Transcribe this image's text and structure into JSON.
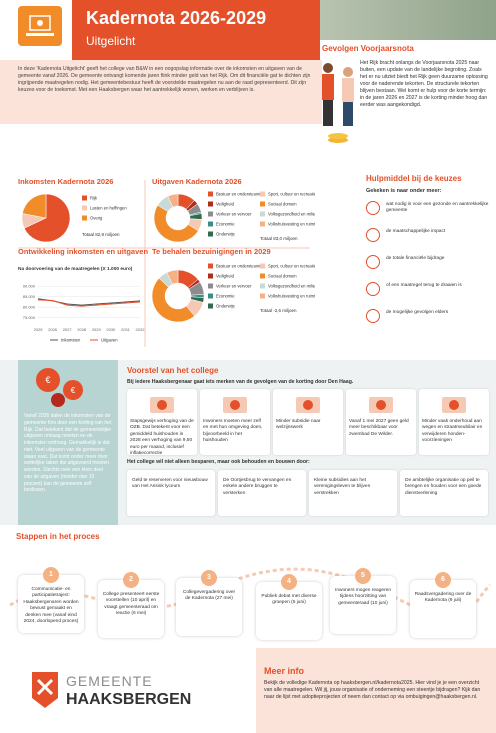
{
  "header": {
    "title": "Kadernota 2026-2029",
    "subtitle": "Uitgelicht"
  },
  "intro": "In deze 'Kadernota Uitgelicht' geeft het college van B&W in een oogopslag informatie over de inkomsten en uitgaven van de gemeente vanaf 2026. De gemeente ontvangt komende jaren fiink minder geld van het Rijk. Om dit financiële gat te dichten zijn ingrijpende maatregelen nodig. Het gemeentebestuur heeft de voorstelde maatregelen nu aan de raad gepresenteerd. Dit zijn keuzes voor de toekomst. Met een Haaksbergen waar het aantrekkelijk wonen, werken en verblijven is.",
  "gevolgen": {
    "title": "Gevolgen Voorjaarsnota",
    "text": "Het Rijk bracht onlangs de Voorjaarsnota 2025 naar buiten, een update van de landelijke begroting. Zoals het er nu uitziet biedt het Rijk geen duurzame oplossing voor de naderende tekorten. De structurele tekorten blijven bestaan. Wel komt er hulp voor de korte termijn: in de jaren 2026 en 2027 is de korting minder hoog dan eerder was aangekondigd."
  },
  "hulpmiddel": {
    "title": "Hulpmiddel bij de keuzes",
    "lead": "Gekeken is naar onder meer:",
    "items": [
      "wat nodig is voor een gezonde en aantrekkelijke gemeente",
      "de maatschappelijke impact",
      "de totale financiële bijdrage",
      "of een maatregel terug te draaien is",
      "de mogelijke gevolgen elders"
    ]
  },
  "chart_data": [
    {
      "type": "pie",
      "title": "Inkomsten Kadernota 2026",
      "categories": [
        "Rijk",
        "Lasten en heffingen",
        "Overig"
      ],
      "values": [
        68,
        10,
        22
      ],
      "colors": [
        "#e4502a",
        "#f6c9b5",
        "#f28c28"
      ],
      "total": "Totaal 82,9 miljoen"
    },
    {
      "type": "pie",
      "donut": true,
      "title": "Uitgaven Kadernota 2026",
      "categories": [
        "Bestuur en ondersteuning",
        "Veiligheid",
        "Verkeer en vervoer",
        "Economie",
        "Onderwijs",
        "Sport, cultuur en recreatie en openbare groen",
        "Sociaal domein",
        "Volksgezondheid en milieu",
        "Volkshuisvesting en ruimtelijke ordening"
      ],
      "values": [
        12,
        3,
        6,
        1,
        4,
        8,
        50,
        9,
        7
      ],
      "colors": [
        "#e4502a",
        "#b5281c",
        "#8c8c8c",
        "#3c8d8a",
        "#2e6b4f",
        "#f6c9b5",
        "#f28c28",
        "#c9d9d6",
        "#f4b183"
      ],
      "total": "Totaal 83,0 miljoen"
    },
    {
      "type": "line",
      "title": "Ontwikkeling inkomsten en uitgaven",
      "subtitle": "Na doorvoering van de maatregelen (X 1.000 euro)",
      "categories": [
        "2025",
        "2026",
        "2027",
        "2028",
        "2029",
        "2030",
        "2031",
        "2032"
      ],
      "series": [
        {
          "name": "Inkomsten",
          "color": "#555555",
          "values": [
            84000,
            83000,
            81500,
            81000,
            81500,
            82000,
            82500,
            83000
          ]
        },
        {
          "name": "Uitgaven",
          "color": "#e4502a",
          "values": [
            83500,
            83200,
            81000,
            80500,
            81000,
            81500,
            82000,
            82500
          ]
        }
      ],
      "ylim": [
        72000,
        92000
      ],
      "yticks": [
        {
          "value": 75000,
          "label": "75.000"
        },
        {
          "value": 80000,
          "label": "80.000"
        },
        {
          "value": 85000,
          "label": "85.000"
        },
        {
          "value": 90000,
          "label": "90.000"
        }
      ],
      "grid": true
    },
    {
      "type": "pie",
      "donut": true,
      "title": "Te behalen bezuinigingen in 2029",
      "categories": [
        "Bestuur en ondersteuning",
        "Veiligheid",
        "Verkeer en vervoer",
        "Economie",
        "Onderwijs",
        "Sport, cultuur en recreatie en openbare groen",
        "Sociaal domein",
        "Volksgezondheid en milieu",
        "Volkshuisvesting en ruimtelijke ordening"
      ],
      "values": [
        14,
        2,
        8,
        2,
        3,
        10,
        48,
        6,
        7
      ],
      "colors": [
        "#e4502a",
        "#b5281c",
        "#8c8c8c",
        "#3c8d8a",
        "#2e6b4f",
        "#f6c9b5",
        "#f28c28",
        "#c9d9d6",
        "#f4b183"
      ],
      "total": "Totaal -2,6 miljoen"
    }
  ],
  "voorstel": {
    "title": "Voorstel van het college",
    "lead": "Bij iedere Haaksbergenaar gaat iets merken van de gevolgen van de korting door Den Haag.",
    "side": "Vanaf 2026 dalen de inkomsten van de gemeente fors door een korting van het Rijk. Dat betekent dat de gemeentelijke uitgaven omlaag moeten en de inkomsten omhoog. Gemakkelijk is dat niet. Veel uitgaven van de gemeente staan vast. Dat komt onder meer door wettelijke taken die uitgevoerd moeten worden. Slechts over een klein deel van de uitgaven (minder dan 10 procent) kan de gemeente zelf beslissen.",
    "cards": [
      "Stapsgewijs verhoging van de OZB. Dat betekent voor een gemiddeld huishouden in 2028 een verhoging van 9,50 euro per maand, inclusief inflatiecorrectie",
      "Inwoners moeten meer zelf en met hun omgeving doen, bijvoorbeeld in het huishouden",
      "Minder subsidie naar welzijnswerk",
      "Vanaf 1 mei 2027 geen geld meer beschikbaar voor zwembad De Wilder.",
      "Minder vaak onderhoud aan wegen en straatmeubilair en verwijderen honden-voorzieningen"
    ],
    "sub": "Het college wil niet alleen besparen, maar ook behouden en bouwen door:",
    "cards2": [
      "Geld te reserveren voor nieuwbouw van Het Assink lyceum",
      "De Oortjesbrug te vervangen en enkele andere bruggen te versterken",
      "Kleine subsidies aan het verenigingsleven te blijven verstrekken",
      "De ambtelijke organisatie op peil te brengen en houden voor een goede dienstverlening"
    ]
  },
  "stappen": {
    "title": "Stappen in het proces",
    "steps": [
      {
        "number": 1,
        "text": "Communicatie- en participatietraject: Haaksbergenaren worden bewust gemaakt en denken mee (vanaf eind 2024, doorlopend proces)"
      },
      {
        "number": 2,
        "text": "College presenteert eerste voorstellen (10 april) en vraagt gemeenteraad om reactie (6 mei)"
      },
      {
        "number": 3,
        "text": "Collegevergadering over de Kadernota (27 mei)"
      },
      {
        "number": 4,
        "text": "Publiek debat met diverse groepen (5 juni)"
      },
      {
        "number": 5,
        "text": "Inwoners mogen reageren tijdens hoorzitting van gemeenteraad (10 juni)"
      },
      {
        "number": 6,
        "text": "Raadsvergadering over de Kadernota (9 juli)"
      }
    ]
  },
  "meer_info": {
    "title": "Meer info",
    "text": "Bekijk de volledige Kadernota op haaksbergen.nl/kadernota2025. Hier vind je je een overzicht van alle maatregelen. Wil jij, jouw organisatie of onderneming een steentje bijdragen? Kijk dan naar de lijst met adoptieprojecten of neem dan contact op via ombuigingen@haaksbergen.nl."
  },
  "logo": {
    "line1": "GEMEENTE",
    "line2": "HAAKSBERGEN"
  }
}
